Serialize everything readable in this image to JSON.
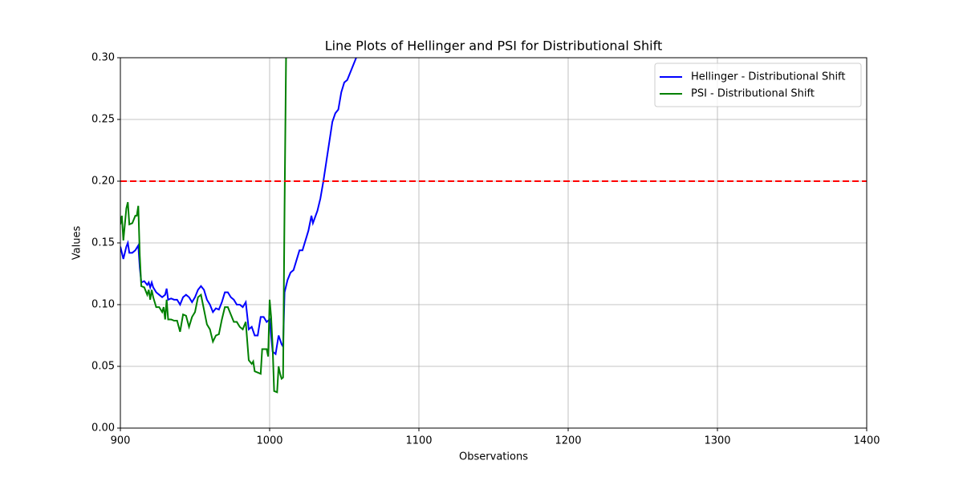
{
  "chart_data": {
    "type": "line",
    "title": "Line Plots of Hellinger and PSI for Distributional Shift",
    "x_label": "Observations",
    "y_label": "Values",
    "xlim": [
      900,
      1400
    ],
    "xticks": [
      900,
      1000,
      1100,
      1200,
      1300,
      1400
    ],
    "ylim": [
      0,
      0.3
    ],
    "yticks": [
      {
        "value": 0,
        "label": "0.00"
      },
      0.05,
      {
        "value": 0.1,
        "label": "0.10"
      },
      0.15,
      {
        "value": 0.2,
        "label": "0.20"
      },
      0.25,
      {
        "value": 0.3,
        "label": "0.30"
      }
    ],
    "grid": true,
    "legend": "upper right",
    "threshold": {
      "value": 0.2,
      "color": "#ff0000"
    },
    "series": [
      {
        "name": "Hellinger - Distributional Shift",
        "color": "#0000ff",
        "x": [
          900,
          902,
          904,
          905,
          906,
          908,
          910,
          912,
          913,
          914,
          916,
          918,
          919,
          920,
          921,
          922,
          924,
          926,
          928,
          930,
          931,
          932,
          934,
          936,
          938,
          940,
          942,
          944,
          946,
          948,
          950,
          952,
          954,
          956,
          958,
          960,
          962,
          964,
          966,
          968,
          970,
          972,
          974,
          976,
          978,
          980,
          982,
          984,
          986,
          988,
          990,
          992,
          994,
          996,
          998,
          1000,
          1002,
          1004,
          1006,
          1008,
          1009,
          1010,
          1012,
          1014,
          1016,
          1018,
          1020,
          1022,
          1024,
          1026,
          1028,
          1029,
          1032,
          1034,
          1036,
          1038,
          1040,
          1042,
          1044,
          1046,
          1048,
          1050,
          1052,
          1054,
          1056,
          1058,
          1060
        ],
        "values": [
          0.147,
          0.137,
          0.147,
          0.15,
          0.142,
          0.142,
          0.144,
          0.148,
          0.13,
          0.118,
          0.119,
          0.116,
          0.118,
          0.114,
          0.118,
          0.114,
          0.11,
          0.108,
          0.106,
          0.108,
          0.113,
          0.104,
          0.105,
          0.104,
          0.104,
          0.1,
          0.106,
          0.108,
          0.106,
          0.102,
          0.106,
          0.112,
          0.115,
          0.112,
          0.104,
          0.1,
          0.094,
          0.097,
          0.096,
          0.102,
          0.11,
          0.11,
          0.106,
          0.104,
          0.1,
          0.1,
          0.098,
          0.102,
          0.08,
          0.082,
          0.075,
          0.075,
          0.09,
          0.09,
          0.086,
          0.088,
          0.062,
          0.06,
          0.075,
          0.068,
          0.066,
          0.11,
          0.12,
          0.126,
          0.128,
          0.136,
          0.144,
          0.144,
          0.152,
          0.16,
          0.172,
          0.166,
          0.176,
          0.186,
          0.2,
          0.216,
          0.232,
          0.248,
          0.255,
          0.258,
          0.272,
          0.28,
          0.282,
          0.288,
          0.294,
          0.3,
          0.31
        ]
      },
      {
        "name": "PSI - Distributional Shift",
        "color": "#008000",
        "x": [
          900,
          901,
          902,
          904,
          905,
          906,
          908,
          910,
          911,
          912,
          913,
          914,
          916,
          918,
          919,
          920,
          921,
          922,
          924,
          926,
          928,
          929,
          930,
          931,
          932,
          934,
          936,
          938,
          940,
          942,
          944,
          946,
          948,
          950,
          952,
          954,
          956,
          958,
          960,
          962,
          964,
          966,
          968,
          970,
          972,
          974,
          976,
          978,
          980,
          982,
          984,
          986,
          988,
          989,
          990,
          992,
          994,
          995,
          998,
          999,
          1000,
          1001,
          1002,
          1003,
          1005,
          1006,
          1007,
          1008,
          1009,
          1010,
          1011,
          1012
        ],
        "values": [
          0.165,
          0.172,
          0.152,
          0.178,
          0.183,
          0.165,
          0.166,
          0.172,
          0.172,
          0.18,
          0.14,
          0.115,
          0.114,
          0.108,
          0.112,
          0.104,
          0.112,
          0.106,
          0.098,
          0.098,
          0.094,
          0.098,
          0.088,
          0.104,
          0.088,
          0.088,
          0.087,
          0.087,
          0.078,
          0.092,
          0.091,
          0.082,
          0.09,
          0.094,
          0.106,
          0.108,
          0.096,
          0.084,
          0.08,
          0.07,
          0.075,
          0.076,
          0.088,
          0.098,
          0.098,
          0.092,
          0.086,
          0.086,
          0.082,
          0.08,
          0.086,
          0.055,
          0.052,
          0.054,
          0.046,
          0.045,
          0.044,
          0.064,
          0.064,
          0.058,
          0.104,
          0.09,
          0.066,
          0.03,
          0.029,
          0.05,
          0.044,
          0.04,
          0.041,
          0.18,
          0.3,
          0.32
        ]
      }
    ]
  }
}
